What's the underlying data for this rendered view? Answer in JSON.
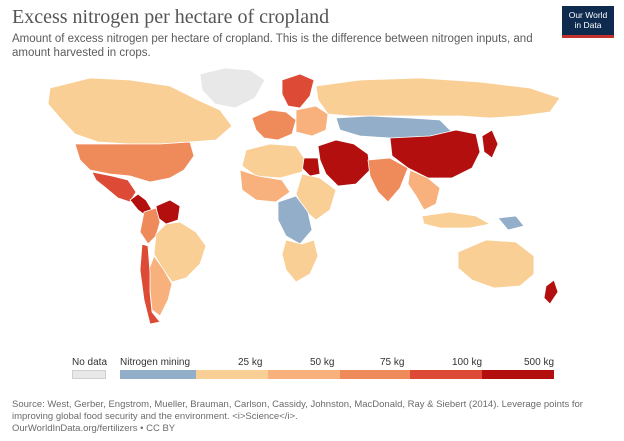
{
  "header": {
    "title": "Excess nitrogen per hectare of cropland",
    "subtitle": "Amount of excess nitrogen per hectare of cropland. This is the difference between nitrogen inputs, and amount harvested in crops."
  },
  "logo": {
    "line1": "Our World",
    "line2": "in Data"
  },
  "legend": {
    "no_data_label": "No data",
    "no_data_color": "#e8e8e8",
    "bins": [
      {
        "label": "Nitrogen mining",
        "color": "#93aec8"
      },
      {
        "label": "25 kg",
        "color": "#f9cf96"
      },
      {
        "label": "50 kg",
        "color": "#f8b07c"
      },
      {
        "label": "75 kg",
        "color": "#ef8a5a"
      },
      {
        "label": "100 kg",
        "color": "#dd4b37"
      },
      {
        "label": "500 kg",
        "color": "#b30f0f"
      }
    ]
  },
  "source": {
    "line1": "Source: West, Gerber, Engstrom, Mueller, Brauman, Carlson, Cassidy, Johnston, MacDonald, Ray & Siebert (2014). Leverage points for",
    "line2": "improving global food security and the environment. <i>Science</i>.",
    "line3": "OurWorldInData.org/fertilizers • CC BY"
  },
  "regions": [
    {
      "id": "canada",
      "color": "#f9cf96"
    },
    {
      "id": "usa",
      "color": "#ef8a5a"
    },
    {
      "id": "mexico",
      "color": "#dd4b37"
    },
    {
      "id": "central-america",
      "color": "#b30f0f"
    },
    {
      "id": "venezuela",
      "color": "#b30f0f"
    },
    {
      "id": "colombia",
      "color": "#ef8a5a"
    },
    {
      "id": "brazil",
      "color": "#f9cf96"
    },
    {
      "id": "southern-cone",
      "color": "#f8b07c"
    },
    {
      "id": "chile",
      "color": "#dd4b37"
    },
    {
      "id": "greenland",
      "color": "#e8e8e8"
    },
    {
      "id": "scandinavia",
      "color": "#dd4b37"
    },
    {
      "id": "western-europe",
      "color": "#ef8a5a"
    },
    {
      "id": "eastern-europe",
      "color": "#f8b07c"
    },
    {
      "id": "russia",
      "color": "#f9cf96"
    },
    {
      "id": "kazakhstan-mongolia",
      "color": "#93aec8"
    },
    {
      "id": "china",
      "color": "#b30f0f"
    },
    {
      "id": "japan-korea",
      "color": "#b30f0f"
    },
    {
      "id": "middle-east",
      "color": "#b30f0f"
    },
    {
      "id": "egypt",
      "color": "#b30f0f"
    },
    {
      "id": "south-asia",
      "color": "#ef8a5a"
    },
    {
      "id": "southeast-asia",
      "color": "#f8b07c"
    },
    {
      "id": "north-africa",
      "color": "#f9cf96"
    },
    {
      "id": "west-africa",
      "color": "#f8b07c"
    },
    {
      "id": "east-africa",
      "color": "#f9cf96"
    },
    {
      "id": "central-africa",
      "color": "#93aec8"
    },
    {
      "id": "southern-africa",
      "color": "#f9cf96"
    },
    {
      "id": "australia",
      "color": "#f9cf96"
    },
    {
      "id": "new-zealand",
      "color": "#b30f0f"
    },
    {
      "id": "indonesia",
      "color": "#f9cf96"
    },
    {
      "id": "papua",
      "color": "#93aec8"
    }
  ]
}
